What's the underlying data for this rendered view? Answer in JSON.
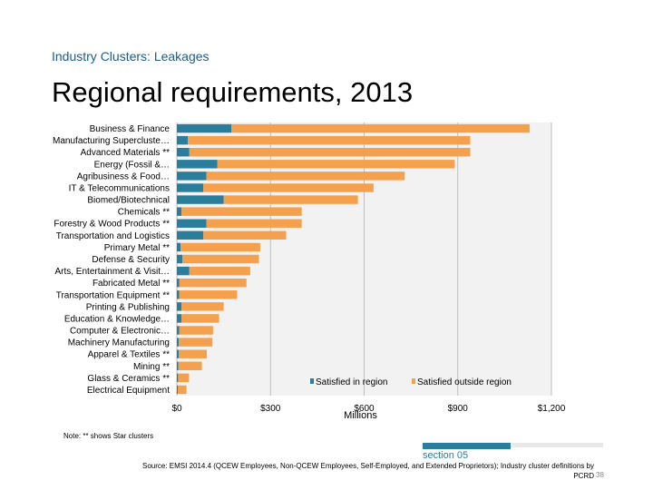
{
  "header": {
    "label": "Industry Clusters: Leakages",
    "title": "Regional requirements, 2013"
  },
  "chart_data": {
    "type": "bar",
    "orientation": "horizontal",
    "stacked": true,
    "categories": [
      "Business & Finance",
      "Manufacturing Supercluste…",
      "Advanced Materials **",
      "Energy (Fossil &…",
      "Agribusiness & Food…",
      "IT & Telecommunications",
      "Biomed/Biotechnical",
      "Chemicals **",
      "Forestry & Wood Products **",
      "Transportation and Logistics",
      "Primary Metal **",
      "Defense & Security",
      "Arts, Entertainment & Visit…",
      "Fabricated Metal **",
      "Transportation Equipment **",
      "Printing & Publishing",
      "Education & Knowledge…",
      "Computer & Electronic…",
      "Machinery Manufacturing",
      "Apparel & Textiles **",
      "Mining **",
      "Glass & Ceramics **",
      "Electrical Equipment"
    ],
    "series": [
      {
        "name": "Satisfied in region",
        "color": "#2a7e9c",
        "values": [
          175,
          35,
          40,
          130,
          95,
          85,
          150,
          15,
          95,
          85,
          12,
          18,
          40,
          8,
          8,
          15,
          15,
          8,
          6,
          6,
          5,
          4,
          3
        ]
      },
      {
        "name": "Satisfied outside region",
        "color": "#f4a04d",
        "values": [
          955,
          905,
          900,
          760,
          635,
          545,
          430,
          385,
          305,
          265,
          255,
          245,
          195,
          215,
          185,
          135,
          120,
          108,
          108,
          90,
          75,
          35,
          28
        ]
      }
    ],
    "xlim": [
      0,
      1200
    ],
    "xticks": [
      0,
      300,
      600,
      900,
      1200
    ],
    "xtick_labels": [
      "$0",
      "$300",
      "$600",
      "$900",
      "$1,200"
    ],
    "xlabel": "Millions",
    "legend": "bottom-right"
  },
  "footer": {
    "note": "Note: ** shows Star clusters",
    "section": "section 05",
    "source": "Source: EMSI 2014.4 (QCEW Employees, Non-QCEW Employees, Self-Employed, and Extended Proprietors); Industry cluster definitions by PCRD",
    "page": "38"
  }
}
